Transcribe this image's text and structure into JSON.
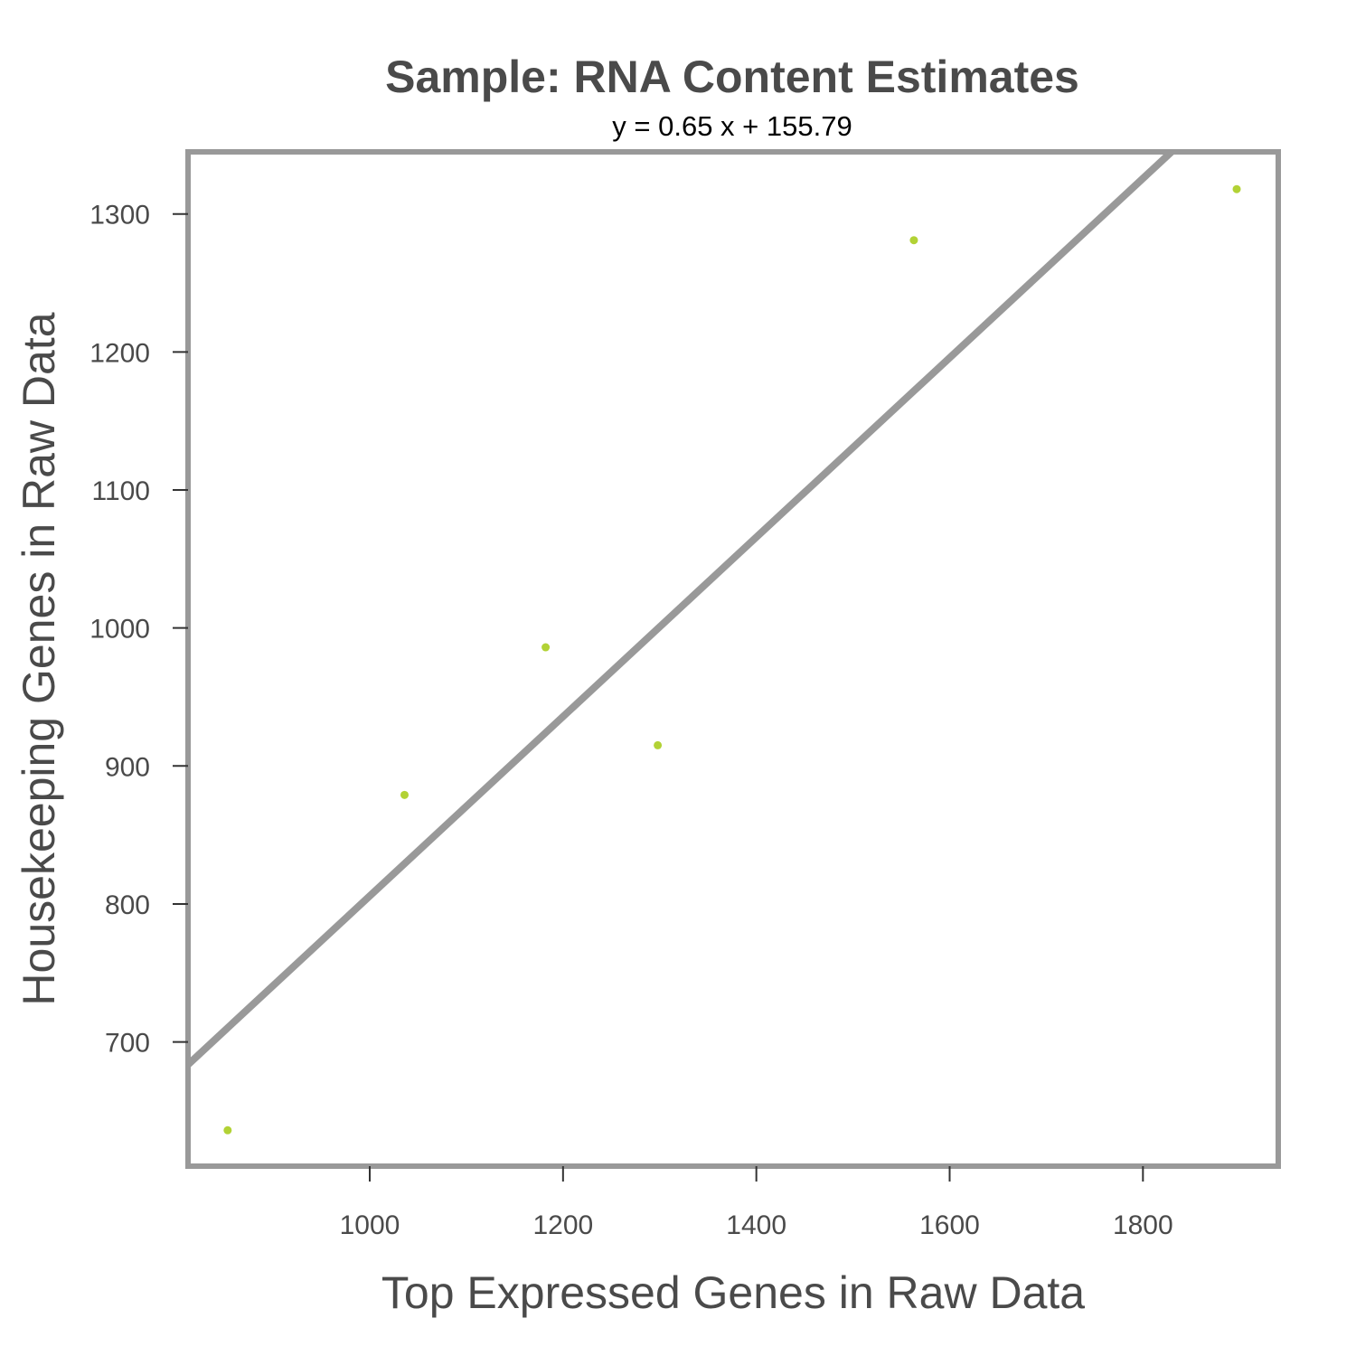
{
  "chart_data": {
    "type": "scatter",
    "title": "Sample: RNA Content Estimates",
    "subtitle": "y = 0.65 x + 155.79",
    "xlabel": "Top Expressed Genes in Raw Data",
    "ylabel": "Housekeeping Genes in Raw Data",
    "xlim": [
      812,
      1940
    ],
    "ylim": [
      610,
      1345
    ],
    "xticks": [
      1000,
      1200,
      1400,
      1600,
      1800
    ],
    "yticks": [
      700,
      800,
      900,
      1000,
      1100,
      1200,
      1300
    ],
    "points": [
      {
        "x": 853,
        "y": 636
      },
      {
        "x": 1036,
        "y": 879
      },
      {
        "x": 1182,
        "y": 986
      },
      {
        "x": 1298,
        "y": 915
      },
      {
        "x": 1563,
        "y": 1281
      },
      {
        "x": 1897,
        "y": 1318
      }
    ],
    "fit": {
      "slope": 0.65,
      "intercept": 155.79
    },
    "grid": false,
    "colors": {
      "points": "#b2d235",
      "fit_line": "#999999",
      "frame": "#999999",
      "text": "#4a4a4a"
    }
  }
}
